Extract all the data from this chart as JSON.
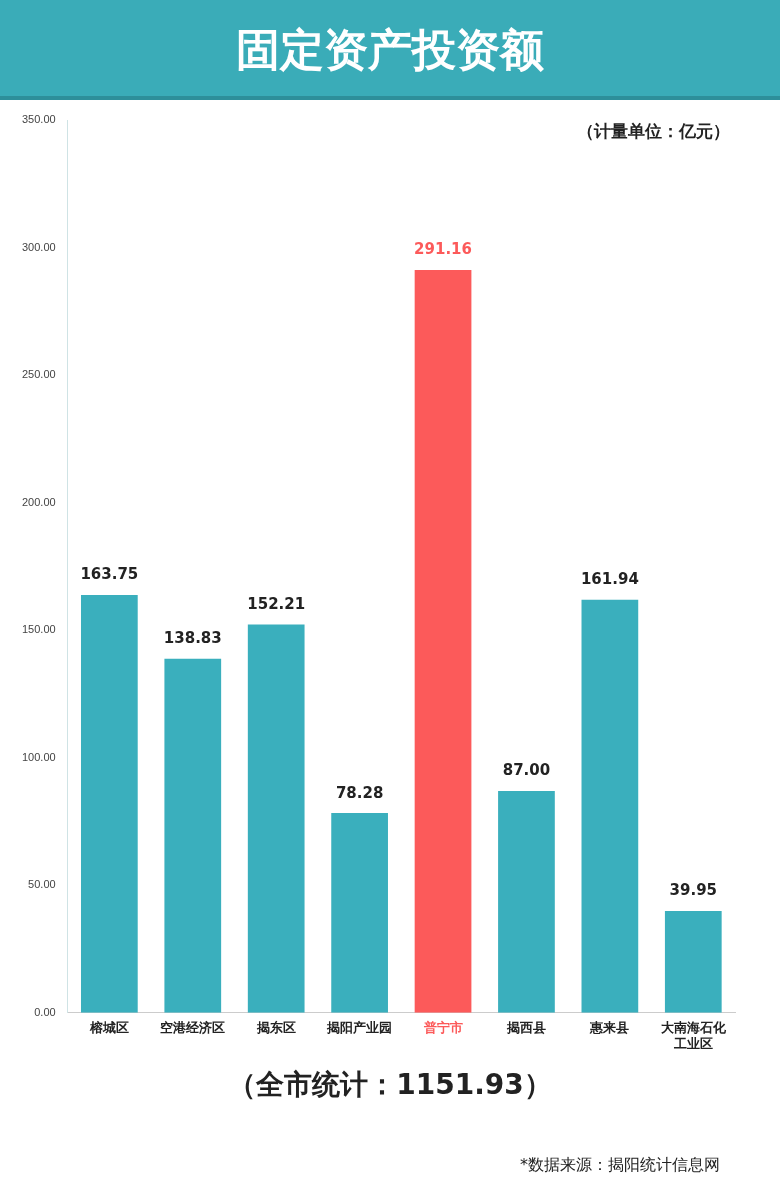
{
  "chart_data": {
    "type": "bar",
    "title": "固定资产投资额",
    "categories": [
      "榕城区",
      "空港经济区",
      "揭东区",
      "揭阳产业园",
      "普宁市",
      "揭西县",
      "惠来县",
      "大南海石化工业区"
    ],
    "values": [
      163.75,
      138.83,
      152.21,
      78.28,
      291.16,
      87.0,
      161.94,
      39.95
    ],
    "colors": [
      "#3aafbd",
      "#3aafbd",
      "#3aafbd",
      "#3aafbd",
      "#fc5a5a",
      "#3aafbd",
      "#3aafbd",
      "#3aafbd"
    ],
    "value_labels": [
      "163.75",
      "138.83",
      "152.21",
      "78.28",
      "291.16",
      "87.00",
      "161.94",
      "39.95"
    ],
    "ylim": [
      0,
      350
    ],
    "yticks": [
      {
        "value": 0,
        "label": "0.00"
      },
      {
        "value": 50,
        "label": "50.00"
      },
      {
        "value": 100,
        "label": "100.00"
      },
      {
        "value": 150,
        "label": "150.00"
      },
      {
        "value": 200,
        "label": "200.00"
      },
      {
        "value": 250,
        "label": "250.00"
      },
      {
        "value": 300,
        "label": "300.00"
      },
      {
        "value": 350,
        "label": "350.00"
      }
    ],
    "grid": false,
    "annotations": [
      "（计量单位：亿元）",
      "（全市统计：1151.93）",
      "*数据来源：揭阳统计信息网"
    ]
  }
}
